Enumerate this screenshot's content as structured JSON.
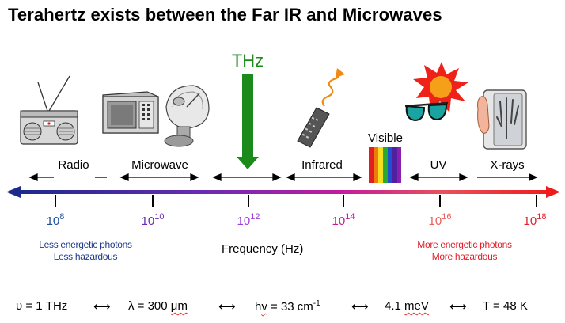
{
  "title": "Terahertz exists between the Far IR and Microwaves",
  "thz_label": "THz",
  "bands": {
    "radio": "Radio",
    "microwave": "Microwave",
    "infrared": "Infrared",
    "visible": "Visible",
    "uv": "UV",
    "xrays": "X-rays"
  },
  "ticks": [
    {
      "base": "10",
      "exp": "8",
      "color": "#1f4e9a"
    },
    {
      "base": "10",
      "exp": "10",
      "color": "#6a2bb5"
    },
    {
      "base": "10",
      "exp": "12",
      "color": "#9b3fd6"
    },
    {
      "base": "10",
      "exp": "14",
      "color": "#c21aa0"
    },
    {
      "base": "10",
      "exp": "16",
      "color": "#e8615c"
    },
    {
      "base": "10",
      "exp": "18",
      "color": "#e0202a"
    }
  ],
  "notes": {
    "left_line1": "Less energetic photons",
    "left_line2": "Less hazardous",
    "right_line1": "More energetic photons",
    "right_line2": "More hazardous",
    "left_color": "#1f3a8a",
    "right_color": "#e0202a"
  },
  "frequency_label": "Frequency (Hz)",
  "equivalence": {
    "nu": "υ = 1 THz",
    "lambda_prefix": "λ = 300 ",
    "lambda_unit": "μm",
    "hv_prefix": "h",
    "hv_underlined": "v",
    "hv_suffix": " = 33 cm",
    "hv_exp": "-1",
    "mev_prefix": "4.1 ",
    "mev_unit": "meV",
    "temp": "T = 48 K"
  },
  "icons": [
    "radio-icon",
    "microwave-oven-icon",
    "satellite-dish-icon",
    "thz-down-arrow-icon",
    "remote-control-icon",
    "rainbow-spectrum-icon",
    "sun-icon",
    "sunglasses-icon",
    "xray-hand-icon"
  ]
}
